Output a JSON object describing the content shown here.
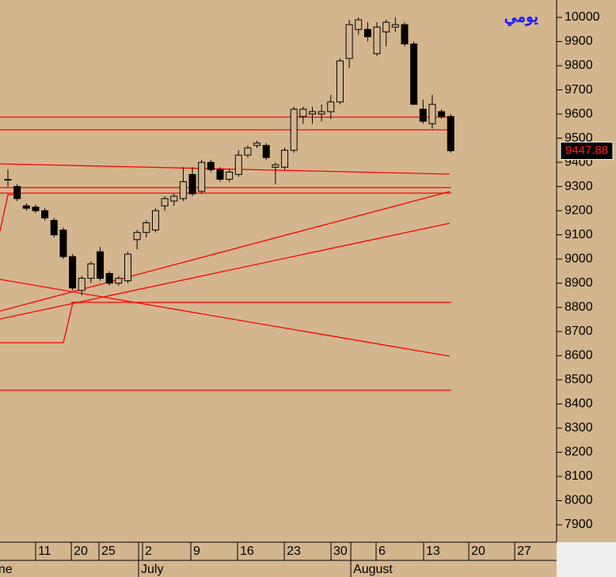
{
  "chart_data": {
    "type": "candlestick",
    "title": "يومي",
    "x": [
      0,
      1,
      2,
      3,
      4,
      5,
      6,
      7,
      8,
      9,
      10,
      11,
      12,
      13,
      14,
      15,
      16,
      17,
      18,
      19,
      20,
      21,
      22,
      23,
      24,
      25,
      26,
      27,
      28,
      29,
      30,
      31,
      32,
      33,
      34,
      35,
      36,
      37,
      38,
      39,
      40,
      41,
      42,
      43,
      44,
      45,
      46,
      47,
      48
    ],
    "open": [
      9330,
      9300,
      9220,
      9215,
      9200,
      9160,
      9120,
      9010,
      8870,
      8920,
      9030,
      8940,
      8900,
      8910,
      9080,
      9110,
      9120,
      9220,
      9240,
      9250,
      9350,
      9280,
      9400,
      9370,
      9330,
      9350,
      9430,
      9470,
      9470,
      9380,
      9380,
      9450,
      9590,
      9600,
      9600,
      9610,
      9650,
      9830,
      9950,
      9950,
      9850,
      9940,
      9960,
      9970,
      9890,
      9620,
      9560,
      9610,
      9590
    ],
    "high": [
      9370,
      9310,
      9230,
      9225,
      9210,
      9170,
      9130,
      9020,
      8930,
      8990,
      9050,
      8950,
      8930,
      9030,
      9120,
      9160,
      9210,
      9260,
      9270,
      9380,
      9380,
      9410,
      9410,
      9380,
      9370,
      9450,
      9470,
      9490,
      9480,
      9400,
      9460,
      9630,
      9630,
      9630,
      9640,
      9680,
      9830,
      9990,
      10000,
      9980,
      9980,
      9990,
      10000,
      9980,
      9900,
      9660,
      9680,
      9620,
      9600
    ],
    "low": [
      9300,
      9240,
      9200,
      9190,
      9160,
      9090,
      9000,
      8870,
      8850,
      8900,
      8910,
      8890,
      8890,
      8900,
      9040,
      9090,
      9110,
      9200,
      9220,
      9240,
      9260,
      9270,
      9360,
      9320,
      9320,
      9340,
      9420,
      9460,
      9410,
      9310,
      9370,
      9440,
      9560,
      9560,
      9570,
      9580,
      9640,
      9790,
      9930,
      9900,
      9840,
      9880,
      9940,
      9880,
      9640,
      9560,
      9540,
      9580,
      9440
    ],
    "close": [
      9330,
      9250,
      9210,
      9200,
      9170,
      9100,
      9010,
      8880,
      8920,
      8980,
      8920,
      8900,
      8920,
      9020,
      9110,
      9150,
      9200,
      9250,
      9260,
      9320,
      9270,
      9400,
      9370,
      9330,
      9360,
      9430,
      9460,
      9480,
      9420,
      9390,
      9450,
      9620,
      9620,
      9610,
      9610,
      9650,
      9820,
      9970,
      9990,
      9920,
      9960,
      9980,
      9970,
      9890,
      9640,
      9570,
      9640,
      9590,
      9447.88
    ],
    "last_price": 9447.88,
    "ylim": [
      7828,
      10072
    ],
    "yticks": [
      10000,
      9900,
      9800,
      9700,
      9600,
      9500,
      9400,
      9300,
      9200,
      9100,
      9000,
      8900,
      8800,
      8700,
      8600,
      8500,
      8400,
      8300,
      8200,
      8100,
      8000,
      7900
    ],
    "xlim": [
      -0.86,
      59.48
    ],
    "xticks": [
      {
        "value": 3.0,
        "label": "11"
      },
      {
        "value": 6.87,
        "label": "20"
      },
      {
        "value": 9.87,
        "label": "25"
      },
      {
        "value": 14.59,
        "label": "2"
      },
      {
        "value": 19.83,
        "label": "9"
      },
      {
        "value": 24.89,
        "label": "16"
      },
      {
        "value": 29.96,
        "label": "23"
      },
      {
        "value": 35.02,
        "label": "30"
      },
      {
        "value": 39.91,
        "label": "6"
      },
      {
        "value": 45.06,
        "label": "13"
      },
      {
        "value": 49.96,
        "label": "20"
      },
      {
        "value": 54.94,
        "label": "27"
      }
    ],
    "months": [
      {
        "value": -2.75,
        "label": "June"
      },
      {
        "value": 14.16,
        "label": "July"
      },
      {
        "value": 37.17,
        "label": "August"
      }
    ],
    "up_color": "#d3b68e",
    "down_color": "#000000",
    "background": "#d3b68e"
  }
}
